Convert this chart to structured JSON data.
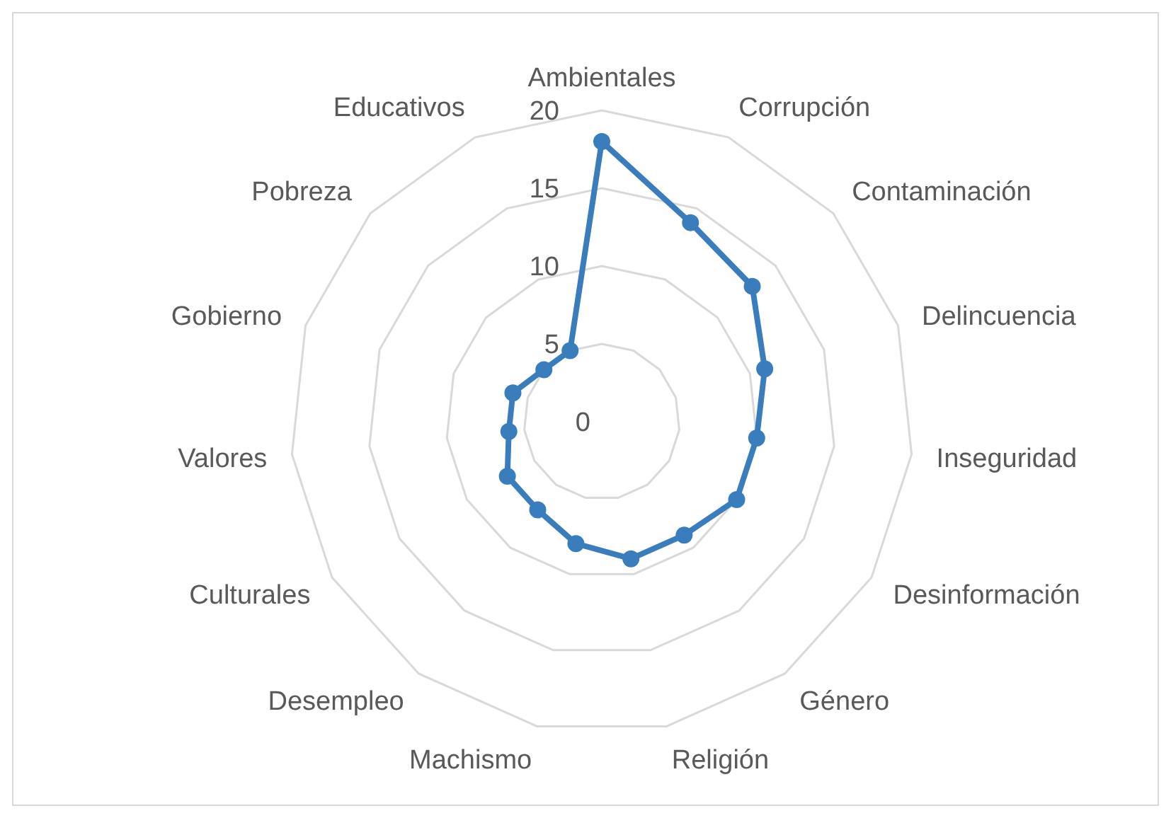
{
  "chart_data": {
    "type": "radar",
    "categories": [
      "Ambientales",
      "Corrupción",
      "Contaminación",
      "Delincuencia",
      "Inseguridad",
      "Desinformación",
      "Género",
      "Religión",
      "Machismo",
      "Desempleo",
      "Culturales",
      "Valores",
      "Gobierno",
      "Pobreza",
      "Educativos"
    ],
    "series": [
      {
        "color": "#3a7dbd",
        "values": [
          18,
          14,
          13,
          11,
          10,
          10,
          9,
          9,
          8,
          7,
          7,
          6,
          6,
          5,
          5
        ]
      }
    ],
    "ylim": [
      0,
      20
    ],
    "yticks": [
      0,
      5,
      10,
      15,
      20
    ],
    "grid": true,
    "marker": "circle",
    "line_style": "solid"
  }
}
